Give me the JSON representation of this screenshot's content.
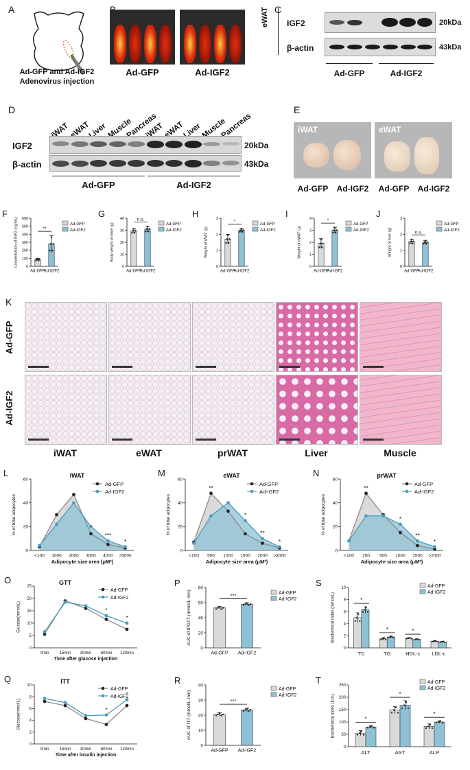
{
  "panels": {
    "A": {
      "label": "A",
      "caption1": "Ad-GFP and Ad-IGF2",
      "caption2": "Adenovirus injection"
    },
    "B": {
      "label": "B",
      "groups": [
        "Ad-GFP",
        "Ad-IGF2"
      ]
    },
    "C": {
      "label": "C",
      "tissue": "eWAT",
      "rows": [
        "IGF2",
        "β-actin"
      ],
      "sizes": [
        "20kDa",
        "43kDa"
      ],
      "groups": [
        "Ad-GFP",
        "Ad-IGF2"
      ]
    },
    "D": {
      "label": "D",
      "lanes": [
        "iWAT",
        "eWAT",
        "Liver",
        "Muscle",
        "Pancreas",
        "iWAT",
        "eWAT",
        "Liver",
        "Muscle",
        "Pancreas"
      ],
      "rows": [
        "IGF2",
        "β-actin"
      ],
      "sizes": [
        "20kDa",
        "43kDa"
      ],
      "groups": [
        "Ad-GFP",
        "Ad-IGF2"
      ]
    },
    "E": {
      "label": "E",
      "tissues": [
        "iWAT",
        "eWAT"
      ],
      "groups": [
        "Ad-GFP",
        "Ad-IGF2",
        "Ad-GFP",
        "Ad-IGF2"
      ]
    },
    "K": {
      "label": "K",
      "rows": [
        "Ad-GFP",
        "Ad-IGF2"
      ],
      "cols": [
        "iWAT",
        "eWAT",
        "prWAT",
        "Liver",
        "Muscle"
      ]
    }
  },
  "legend": {
    "gfp": "Ad-GFP",
    "igf2": "Ad-IGF2"
  },
  "colors": {
    "gfp": "#d9d9d9",
    "igf2": "#8ec1d6",
    "igf2_line": "#4a9bbd",
    "dark": "#222222",
    "he_pink": "#f1c6d6",
    "he_fat": "#f7f0f2"
  },
  "chart_data": [
    {
      "id": "F",
      "type": "bar",
      "label": "F",
      "ylabel": "Concentration of IGF2 (ng/mL)",
      "categories": [
        "Ad-GFP",
        "Ad-IGF2"
      ],
      "values": [
        85,
        280
      ],
      "errors": [
        15,
        105
      ],
      "ylim": [
        0,
        600
      ],
      "yticks": [
        0,
        100,
        200,
        300,
        400,
        500,
        600
      ],
      "sig": "**"
    },
    {
      "id": "G",
      "type": "bar",
      "label": "G",
      "ylabel": "Body weight of mice (g)",
      "categories": [
        "Ad-GFP",
        "Ad-IGF2"
      ],
      "values": [
        29.5,
        31
      ],
      "errors": [
        2,
        2.5
      ],
      "ylim": [
        0,
        40
      ],
      "yticks": [
        0,
        10,
        20,
        30,
        40
      ],
      "sig": "n.s."
    },
    {
      "id": "H",
      "type": "bar",
      "label": "H",
      "ylabel": "Weight of iWAT (g)",
      "categories": [
        "Ad-GFP",
        "Ad-IGF2"
      ],
      "values": [
        1.7,
        2.25
      ],
      "errors": [
        0.3,
        0.12
      ],
      "ylim": [
        0,
        3
      ],
      "yticks": [
        0,
        1,
        2,
        3
      ],
      "sig": "*"
    },
    {
      "id": "I",
      "type": "bar",
      "label": "I",
      "ylabel": "Weight of eWAT (g)",
      "categories": [
        "Ad-GFP",
        "Ad-IGF2"
      ],
      "values": [
        1.9,
        3
      ],
      "errors": [
        0.4,
        0.25
      ],
      "ylim": [
        0,
        4
      ],
      "yticks": [
        0,
        1,
        2,
        3,
        4
      ],
      "sig": "*"
    },
    {
      "id": "J",
      "type": "bar",
      "label": "J",
      "ylabel": "Weight of liver (g)",
      "categories": [
        "Ad-GFP",
        "Ad-IGF2"
      ],
      "values": [
        1.55,
        1.5
      ],
      "errors": [
        0.15,
        0.12
      ],
      "ylim": [
        0,
        3
      ],
      "yticks": [
        0,
        1,
        2,
        3
      ],
      "sig": "n.s."
    },
    {
      "id": "L",
      "type": "area",
      "label": "L",
      "title": "iWAT",
      "xlabel": "Adipocyte size area (μM²)",
      "ylabel": "% of total adipocytes",
      "categories": [
        "<100",
        "1000",
        "2000",
        "3000",
        "4000",
        ">5000"
      ],
      "series": [
        {
          "name": "Ad-GFP",
          "values": [
            3,
            30,
            47,
            14,
            5,
            2
          ]
        },
        {
          "name": "Ad-IGF2",
          "values": [
            4,
            22,
            40,
            20,
            8,
            3
          ]
        }
      ],
      "ylim": [
        0,
        60
      ],
      "yticks": [
        0,
        20,
        40,
        60
      ],
      "stars": [
        {
          "i": 4,
          "t": "***"
        },
        {
          "i": 5,
          "t": "*"
        }
      ]
    },
    {
      "id": "M",
      "type": "area",
      "label": "M",
      "title": "eWAT",
      "xlabel": "Adipocyte size area (μM²)",
      "ylabel": "% of total adipocytes",
      "categories": [
        "<100",
        "500",
        "1000",
        "1500",
        "2000",
        ">3000"
      ],
      "series": [
        {
          "name": "Ad-GFP",
          "values": [
            7,
            48,
            33,
            14,
            6,
            2
          ]
        },
        {
          "name": "Ad-IGF2",
          "values": [
            6,
            29,
            40,
            25,
            10,
            3
          ]
        }
      ],
      "ylim": [
        0,
        60
      ],
      "yticks": [
        0,
        20,
        40,
        60
      ],
      "stars": [
        {
          "i": 1,
          "t": "**"
        },
        {
          "i": 3,
          "t": "*"
        },
        {
          "i": 4,
          "t": "**"
        },
        {
          "i": 5,
          "t": "*"
        }
      ]
    },
    {
      "id": "N",
      "type": "area",
      "label": "N",
      "title": "prWAT",
      "xlabel": "Adipocyte size area (μM²)",
      "ylabel": "% of total adipocytes",
      "categories": [
        "<100",
        "250",
        "500",
        "1000",
        "1500",
        ">2000"
      ],
      "series": [
        {
          "name": "Ad-GFP",
          "values": [
            8,
            48,
            30,
            15,
            4,
            1
          ]
        },
        {
          "name": "Ad-IGF2",
          "values": [
            8,
            29,
            29,
            22,
            8,
            3
          ]
        }
      ],
      "ylim": [
        0,
        60
      ],
      "yticks": [
        0,
        20,
        40,
        60
      ],
      "stars": [
        {
          "i": 1,
          "t": "**"
        },
        {
          "i": 3,
          "t": "*"
        },
        {
          "i": 4,
          "t": "**"
        },
        {
          "i": 5,
          "t": "*"
        }
      ]
    },
    {
      "id": "O",
      "type": "line",
      "label": "O",
      "title": "GTT",
      "xlabel": "Time after glucose injection",
      "ylabel": "Glucose(mmol/L)",
      "categories": [
        "0min",
        "15min",
        "30min",
        "60min",
        "120min"
      ],
      "series": [
        {
          "name": "Ad-GFP",
          "values": [
            5.5,
            19,
            16,
            11.5,
            7.5
          ]
        },
        {
          "name": "Ad-IGF2",
          "values": [
            6.5,
            18.5,
            17,
            13,
            10
          ]
        }
      ],
      "ylim": [
        0,
        25
      ],
      "yticks": [
        0,
        5,
        10,
        15,
        20,
        25
      ],
      "stars": [
        {
          "i": 3,
          "t": "*"
        },
        {
          "i": 4,
          "t": "*"
        }
      ]
    },
    {
      "id": "P",
      "type": "bar",
      "label": "P",
      "ylabel": "AUC of IPGTT (mmol/L·min)",
      "categories": [
        "Ad-GFP",
        "Ad-IGF2"
      ],
      "values": [
        53,
        58
      ],
      "errors": [
        2,
        1.5
      ],
      "ylim": [
        0,
        80
      ],
      "yticks": [
        0,
        20,
        40,
        60,
        80
      ],
      "sig": "***"
    },
    {
      "id": "S",
      "type": "bar",
      "label": "S",
      "ylabel": "Biochemical index (mmol/L)",
      "categories": [
        "TC",
        "TG",
        "HDL-c",
        "LDL-c"
      ],
      "series": [
        {
          "name": "Ad-GFP",
          "values": [
            5,
            1.5,
            1.6,
            1.1
          ]
        },
        {
          "name": "Ad-IGF2",
          "values": [
            6.3,
            1.8,
            1.4,
            1.0
          ]
        }
      ],
      "errors": [
        [
          0.8,
          0.5
        ],
        [
          0.2,
          0.15
        ],
        [
          0.1,
          0.1
        ],
        [
          0.1,
          0.1
        ]
      ],
      "ylim": [
        0,
        10
      ],
      "yticks": [
        0,
        2,
        4,
        6,
        8,
        10
      ],
      "sigs": [
        {
          "i": 0,
          "t": "*"
        },
        {
          "i": 1,
          "t": "*"
        },
        {
          "i": 2,
          "t": "*"
        }
      ]
    },
    {
      "id": "Q",
      "type": "line",
      "label": "Q",
      "title": "ITT",
      "xlabel": "Time after insulin injection",
      "ylabel": "Glucose(mmol/L)",
      "categories": [
        "0min",
        "15min",
        "30min",
        "60min",
        "120min"
      ],
      "series": [
        {
          "name": "Ad-GFP",
          "values": [
            7.2,
            6.5,
            4.3,
            3.3,
            6.5
          ]
        },
        {
          "name": "Ad-IGF2",
          "values": [
            7.7,
            7.0,
            4.8,
            4.9,
            7.5
          ]
        }
      ],
      "ylim": [
        0,
        10
      ],
      "yticks": [
        0,
        2,
        4,
        6,
        8,
        10
      ],
      "stars": [
        {
          "i": 3,
          "t": "*"
        },
        {
          "i": 4,
          "t": "*"
        }
      ]
    },
    {
      "id": "R",
      "type": "bar",
      "label": "R",
      "ylabel": "AUC of ITT (mmol/L·min)",
      "categories": [
        "Ad-GFP",
        "Ad-IGF2"
      ],
      "values": [
        20.5,
        23.5
      ],
      "errors": [
        1,
        1
      ],
      "ylim": [
        0,
        40
      ],
      "yticks": [
        0,
        10,
        20,
        30,
        40
      ],
      "sig": "***"
    },
    {
      "id": "T",
      "type": "bar",
      "label": "T",
      "ylabel": "Biochemical index (IU/L)",
      "categories": [
        "ALT",
        "AST",
        "ALP"
      ],
      "series": [
        {
          "name": "Ad-GFP",
          "values": [
            55,
            148,
            82
          ]
        },
        {
          "name": "Ad-IGF2",
          "values": [
            80,
            168,
            100
          ]
        }
      ],
      "errors": [
        [
          10,
          5
        ],
        [
          15,
          18
        ],
        [
          10,
          5
        ]
      ],
      "ylim": [
        0,
        250
      ],
      "yticks": [
        0,
        50,
        100,
        150,
        200,
        250
      ],
      "sigs": [
        {
          "i": 0,
          "t": "*"
        },
        {
          "i": 1,
          "t": "*"
        },
        {
          "i": 2,
          "t": "*"
        }
      ]
    }
  ]
}
